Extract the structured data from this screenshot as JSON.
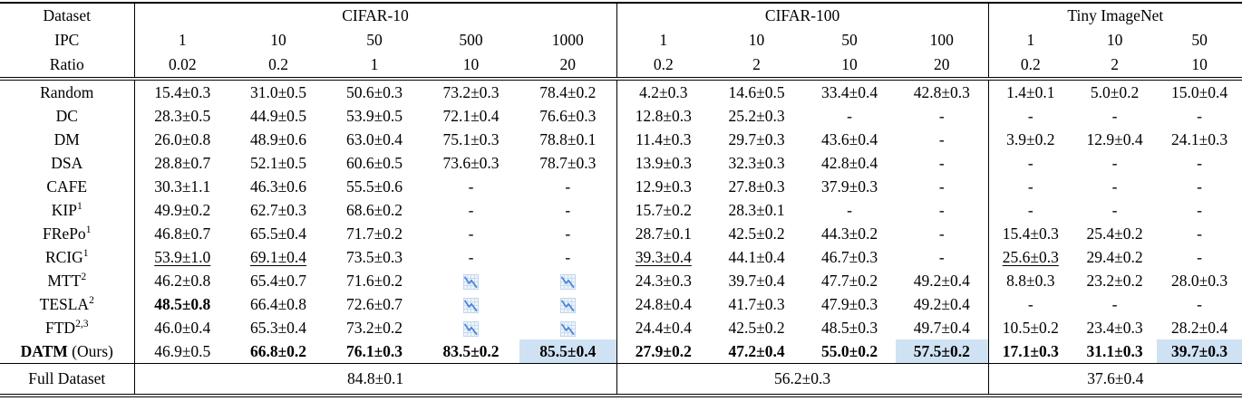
{
  "table": {
    "corner_labels": {
      "dataset": "Dataset",
      "ipc": "IPC",
      "ratio": "Ratio"
    },
    "groups": [
      {
        "name": "CIFAR-10",
        "ipc": [
          "1",
          "10",
          "50",
          "500",
          "1000"
        ],
        "ratio": [
          "0.02",
          "0.2",
          "1",
          "10",
          "20"
        ]
      },
      {
        "name": "CIFAR-100",
        "ipc": [
          "1",
          "10",
          "50",
          "100"
        ],
        "ratio": [
          "0.2",
          "2",
          "10",
          "20"
        ]
      },
      {
        "name": "Tiny ImageNet",
        "ipc": [
          "1",
          "10",
          "50"
        ],
        "ratio": [
          "0.2",
          "2",
          "10"
        ]
      }
    ],
    "rows": [
      {
        "method": "Random",
        "sup": "",
        "cells": [
          {
            "v": "15.4±0.3"
          },
          {
            "v": "31.0±0.5"
          },
          {
            "v": "50.6±0.3"
          },
          {
            "v": "73.2±0.3"
          },
          {
            "v": "78.4±0.2"
          },
          {
            "v": "4.2±0.3"
          },
          {
            "v": "14.6±0.5"
          },
          {
            "v": "33.4±0.4"
          },
          {
            "v": "42.8±0.3"
          },
          {
            "v": "1.4±0.1"
          },
          {
            "v": "5.0±0.2"
          },
          {
            "v": "15.0±0.4"
          }
        ]
      },
      {
        "method": "DC",
        "sup": "",
        "cells": [
          {
            "v": "28.3±0.5"
          },
          {
            "v": "44.9±0.5"
          },
          {
            "v": "53.9±0.5"
          },
          {
            "v": "72.1±0.4"
          },
          {
            "v": "76.6±0.3"
          },
          {
            "v": "12.8±0.3"
          },
          {
            "v": "25.2±0.3"
          },
          {
            "v": "-"
          },
          {
            "v": "-"
          },
          {
            "v": "-"
          },
          {
            "v": "-"
          },
          {
            "v": "-"
          }
        ]
      },
      {
        "method": "DM",
        "sup": "",
        "cells": [
          {
            "v": "26.0±0.8"
          },
          {
            "v": "48.9±0.6"
          },
          {
            "v": "63.0±0.4"
          },
          {
            "v": "75.1±0.3"
          },
          {
            "v": "78.8±0.1"
          },
          {
            "v": "11.4±0.3"
          },
          {
            "v": "29.7±0.3"
          },
          {
            "v": "43.6±0.4"
          },
          {
            "v": "-"
          },
          {
            "v": "3.9±0.2"
          },
          {
            "v": "12.9±0.4"
          },
          {
            "v": "24.1±0.3"
          }
        ]
      },
      {
        "method": "DSA",
        "sup": "",
        "cells": [
          {
            "v": "28.8±0.7"
          },
          {
            "v": "52.1±0.5"
          },
          {
            "v": "60.6±0.5"
          },
          {
            "v": "73.6±0.3"
          },
          {
            "v": "78.7±0.3"
          },
          {
            "v": "13.9±0.3"
          },
          {
            "v": "32.3±0.3"
          },
          {
            "v": "42.8±0.4"
          },
          {
            "v": "-"
          },
          {
            "v": "-"
          },
          {
            "v": "-"
          },
          {
            "v": "-"
          }
        ]
      },
      {
        "method": "CAFE",
        "sup": "",
        "cells": [
          {
            "v": "30.3±1.1"
          },
          {
            "v": "46.3±0.6"
          },
          {
            "v": "55.5±0.6"
          },
          {
            "v": "-"
          },
          {
            "v": "-"
          },
          {
            "v": "12.9±0.3"
          },
          {
            "v": "27.8±0.3"
          },
          {
            "v": "37.9±0.3"
          },
          {
            "v": "-"
          },
          {
            "v": "-"
          },
          {
            "v": "-"
          },
          {
            "v": "-"
          }
        ]
      },
      {
        "method": "KIP",
        "sup": "1",
        "cells": [
          {
            "v": "49.9±0.2"
          },
          {
            "v": "62.7±0.3"
          },
          {
            "v": "68.6±0.2"
          },
          {
            "v": "-"
          },
          {
            "v": "-"
          },
          {
            "v": "15.7±0.2"
          },
          {
            "v": "28.3±0.1"
          },
          {
            "v": "-"
          },
          {
            "v": "-"
          },
          {
            "v": "-"
          },
          {
            "v": "-"
          },
          {
            "v": "-"
          }
        ]
      },
      {
        "method": "FRePo",
        "sup": "1",
        "cells": [
          {
            "v": "46.8±0.7"
          },
          {
            "v": "65.5±0.4"
          },
          {
            "v": "71.7±0.2"
          },
          {
            "v": "-"
          },
          {
            "v": "-"
          },
          {
            "v": "28.7±0.1"
          },
          {
            "v": "42.5±0.2"
          },
          {
            "v": "44.3±0.2"
          },
          {
            "v": "-"
          },
          {
            "v": "15.4±0.3"
          },
          {
            "v": "25.4±0.2"
          },
          {
            "v": "-"
          }
        ]
      },
      {
        "method": "RCIG",
        "sup": "1",
        "cells": [
          {
            "v": "53.9±1.0",
            "u": true
          },
          {
            "v": "69.1±0.4",
            "u": true
          },
          {
            "v": "73.5±0.3"
          },
          {
            "v": "-"
          },
          {
            "v": "-"
          },
          {
            "v": "39.3±0.4",
            "u": true
          },
          {
            "v": "44.1±0.4"
          },
          {
            "v": "46.7±0.3"
          },
          {
            "v": "-"
          },
          {
            "v": "25.6±0.3",
            "u": true
          },
          {
            "v": "29.4±0.2"
          },
          {
            "v": "-"
          }
        ]
      },
      {
        "method": "MTT",
        "sup": "2",
        "cells": [
          {
            "v": "46.2±0.8"
          },
          {
            "v": "65.4±0.7"
          },
          {
            "v": "71.6±0.2"
          },
          {
            "icon": true
          },
          {
            "icon": true
          },
          {
            "v": "24.3±0.3"
          },
          {
            "v": "39.7±0.4"
          },
          {
            "v": "47.7±0.2"
          },
          {
            "v": "49.2±0.4"
          },
          {
            "v": "8.8±0.3"
          },
          {
            "v": "23.2±0.2"
          },
          {
            "v": "28.0±0.3"
          }
        ]
      },
      {
        "method": "TESLA",
        "sup": "2",
        "cells": [
          {
            "v": "48.5±0.8",
            "b": true
          },
          {
            "v": "66.4±0.8"
          },
          {
            "v": "72.6±0.7"
          },
          {
            "icon": true
          },
          {
            "icon": true
          },
          {
            "v": "24.8±0.4"
          },
          {
            "v": "41.7±0.3"
          },
          {
            "v": "47.9±0.3"
          },
          {
            "v": "49.2±0.4"
          },
          {
            "v": "-"
          },
          {
            "v": "-"
          },
          {
            "v": "-"
          }
        ]
      },
      {
        "method": "FTD",
        "sup": "2,3",
        "cells": [
          {
            "v": "46.0±0.4"
          },
          {
            "v": "65.3±0.4"
          },
          {
            "v": "73.2±0.2"
          },
          {
            "icon": true
          },
          {
            "icon": true
          },
          {
            "v": "24.4±0.4"
          },
          {
            "v": "42.5±0.2"
          },
          {
            "v": "48.5±0.3"
          },
          {
            "v": "49.7±0.4"
          },
          {
            "v": "10.5±0.2"
          },
          {
            "v": "23.4±0.3"
          },
          {
            "v": "28.2±0.4"
          }
        ]
      },
      {
        "method": "DATM",
        "sup": "",
        "method_bold": true,
        "method_suffix": " (Ours)",
        "cells": [
          {
            "v": "46.9±0.5"
          },
          {
            "v": "66.8±0.2",
            "b": true
          },
          {
            "v": "76.1±0.3",
            "b": true
          },
          {
            "v": "83.5±0.2",
            "b": true
          },
          {
            "v": "85.5±0.4",
            "b": true,
            "hl": true
          },
          {
            "v": "27.9±0.2",
            "b": true
          },
          {
            "v": "47.2±0.4",
            "b": true
          },
          {
            "v": "55.0±0.2",
            "b": true
          },
          {
            "v": "57.5±0.2",
            "b": true,
            "hl": true
          },
          {
            "v": "17.1±0.3",
            "b": true
          },
          {
            "v": "31.1±0.3",
            "b": true
          },
          {
            "v": "39.7±0.3",
            "b": true,
            "hl": true
          }
        ]
      }
    ],
    "footer": {
      "label": "Full Dataset",
      "values": [
        "84.8±0.1",
        "56.2±0.3",
        "37.6±0.4"
      ]
    },
    "colors": {
      "highlight": "#cfe2f3",
      "icon_stroke": "#4a86d8",
      "icon_grid": "#c2d6ec",
      "icon_bg": "#eef4fb",
      "rule": "#000000"
    }
  }
}
